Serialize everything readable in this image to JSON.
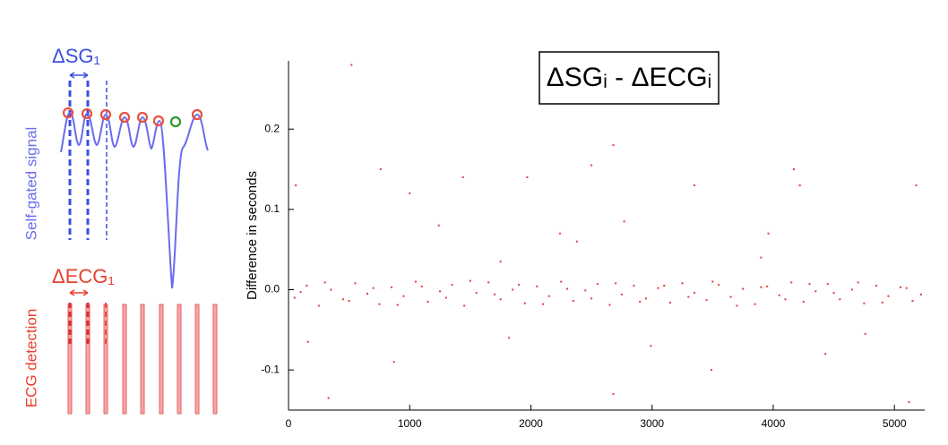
{
  "diagram": {
    "delta_sg": "ΔSG₁",
    "delta_ecg": "ΔECG₁",
    "signal_label": "Self-gated signal",
    "ecg_label": "ECG detection"
  },
  "chart_data": {
    "type": "scatter",
    "title": "ΔSGᵢ - ΔECGᵢ",
    "y_label": "Difference in seconds",
    "color": "#e83a3a",
    "xlim": [
      0,
      5250
    ],
    "ylim": [
      -0.15,
      0.285
    ],
    "xticks": [
      0,
      1000,
      2000,
      3000,
      4000,
      5000
    ],
    "yticks": [
      -0.1,
      {
        "value": 0,
        "label": "0.0"
      },
      0.1,
      0.2
    ],
    "x": [
      50,
      150,
      250,
      350,
      450,
      550,
      650,
      750,
      850,
      950,
      1050,
      1150,
      1250,
      1350,
      1450,
      1550,
      1650,
      1750,
      1850,
      1950,
      2050,
      2150,
      2250,
      2350,
      2450,
      2550,
      2650,
      2750,
      2850,
      2950,
      3050,
      3150,
      3250,
      3350,
      3450,
      3550,
      3650,
      3750,
      3850,
      3950,
      4050,
      4150,
      4250,
      4350,
      4450,
      4550,
      4650,
      4750,
      4850,
      4950,
      5050,
      5150,
      5220,
      100,
      300,
      500,
      700,
      900,
      1100,
      1300,
      1500,
      1700,
      1900,
      2100,
      2300,
      2500,
      2700,
      2900,
      3100,
      3300,
      3500,
      3700,
      3900,
      4100,
      4300,
      4500,
      4700,
      4900,
      5100,
      520,
      2680,
      60,
      760,
      1440,
      1970,
      2500,
      4170,
      4220,
      1000,
      3350,
      5180,
      1240,
      2380,
      3960,
      2240,
      2770,
      330,
      870,
      2680,
      3490,
      4430,
      5120,
      1820,
      160,
      2990,
      4760,
      1750,
      3900
    ],
    "y": [
      -0.01,
      0.005,
      -0.02,
      0.0,
      -0.012,
      0.008,
      -0.005,
      -0.018,
      0.003,
      -0.008,
      0.01,
      -0.015,
      -0.002,
      0.006,
      -0.02,
      -0.004,
      0.009,
      -0.012,
      0.0,
      -0.017,
      0.004,
      -0.008,
      0.01,
      -0.014,
      -0.001,
      0.007,
      -0.019,
      -0.006,
      0.005,
      -0.011,
      0.002,
      -0.016,
      0.008,
      -0.004,
      -0.013,
      0.006,
      -0.009,
      0.001,
      -0.018,
      0.004,
      -0.007,
      0.009,
      -0.015,
      -0.002,
      0.007,
      -0.012,
      0.0,
      -0.017,
      0.005,
      -0.008,
      0.003,
      -0.014,
      -0.006,
      -0.003,
      0.009,
      -0.014,
      0.002,
      -0.019,
      0.004,
      -0.01,
      0.011,
      -0.006,
      0.006,
      -0.018,
      0.001,
      -0.011,
      0.008,
      -0.015,
      0.005,
      -0.009,
      0.01,
      -0.02,
      0.003,
      -0.012,
      0.007,
      -0.004,
      0.009,
      -0.016,
      0.002,
      0.28,
      0.18,
      0.13,
      0.15,
      0.14,
      0.14,
      0.155,
      0.15,
      0.13,
      0.12,
      0.13,
      0.13,
      0.08,
      0.06,
      0.07,
      0.07,
      0.085,
      -0.135,
      -0.09,
      -0.13,
      -0.1,
      -0.08,
      -0.14,
      -0.06,
      -0.065,
      -0.07,
      -0.055,
      0.035,
      0.04
    ]
  }
}
